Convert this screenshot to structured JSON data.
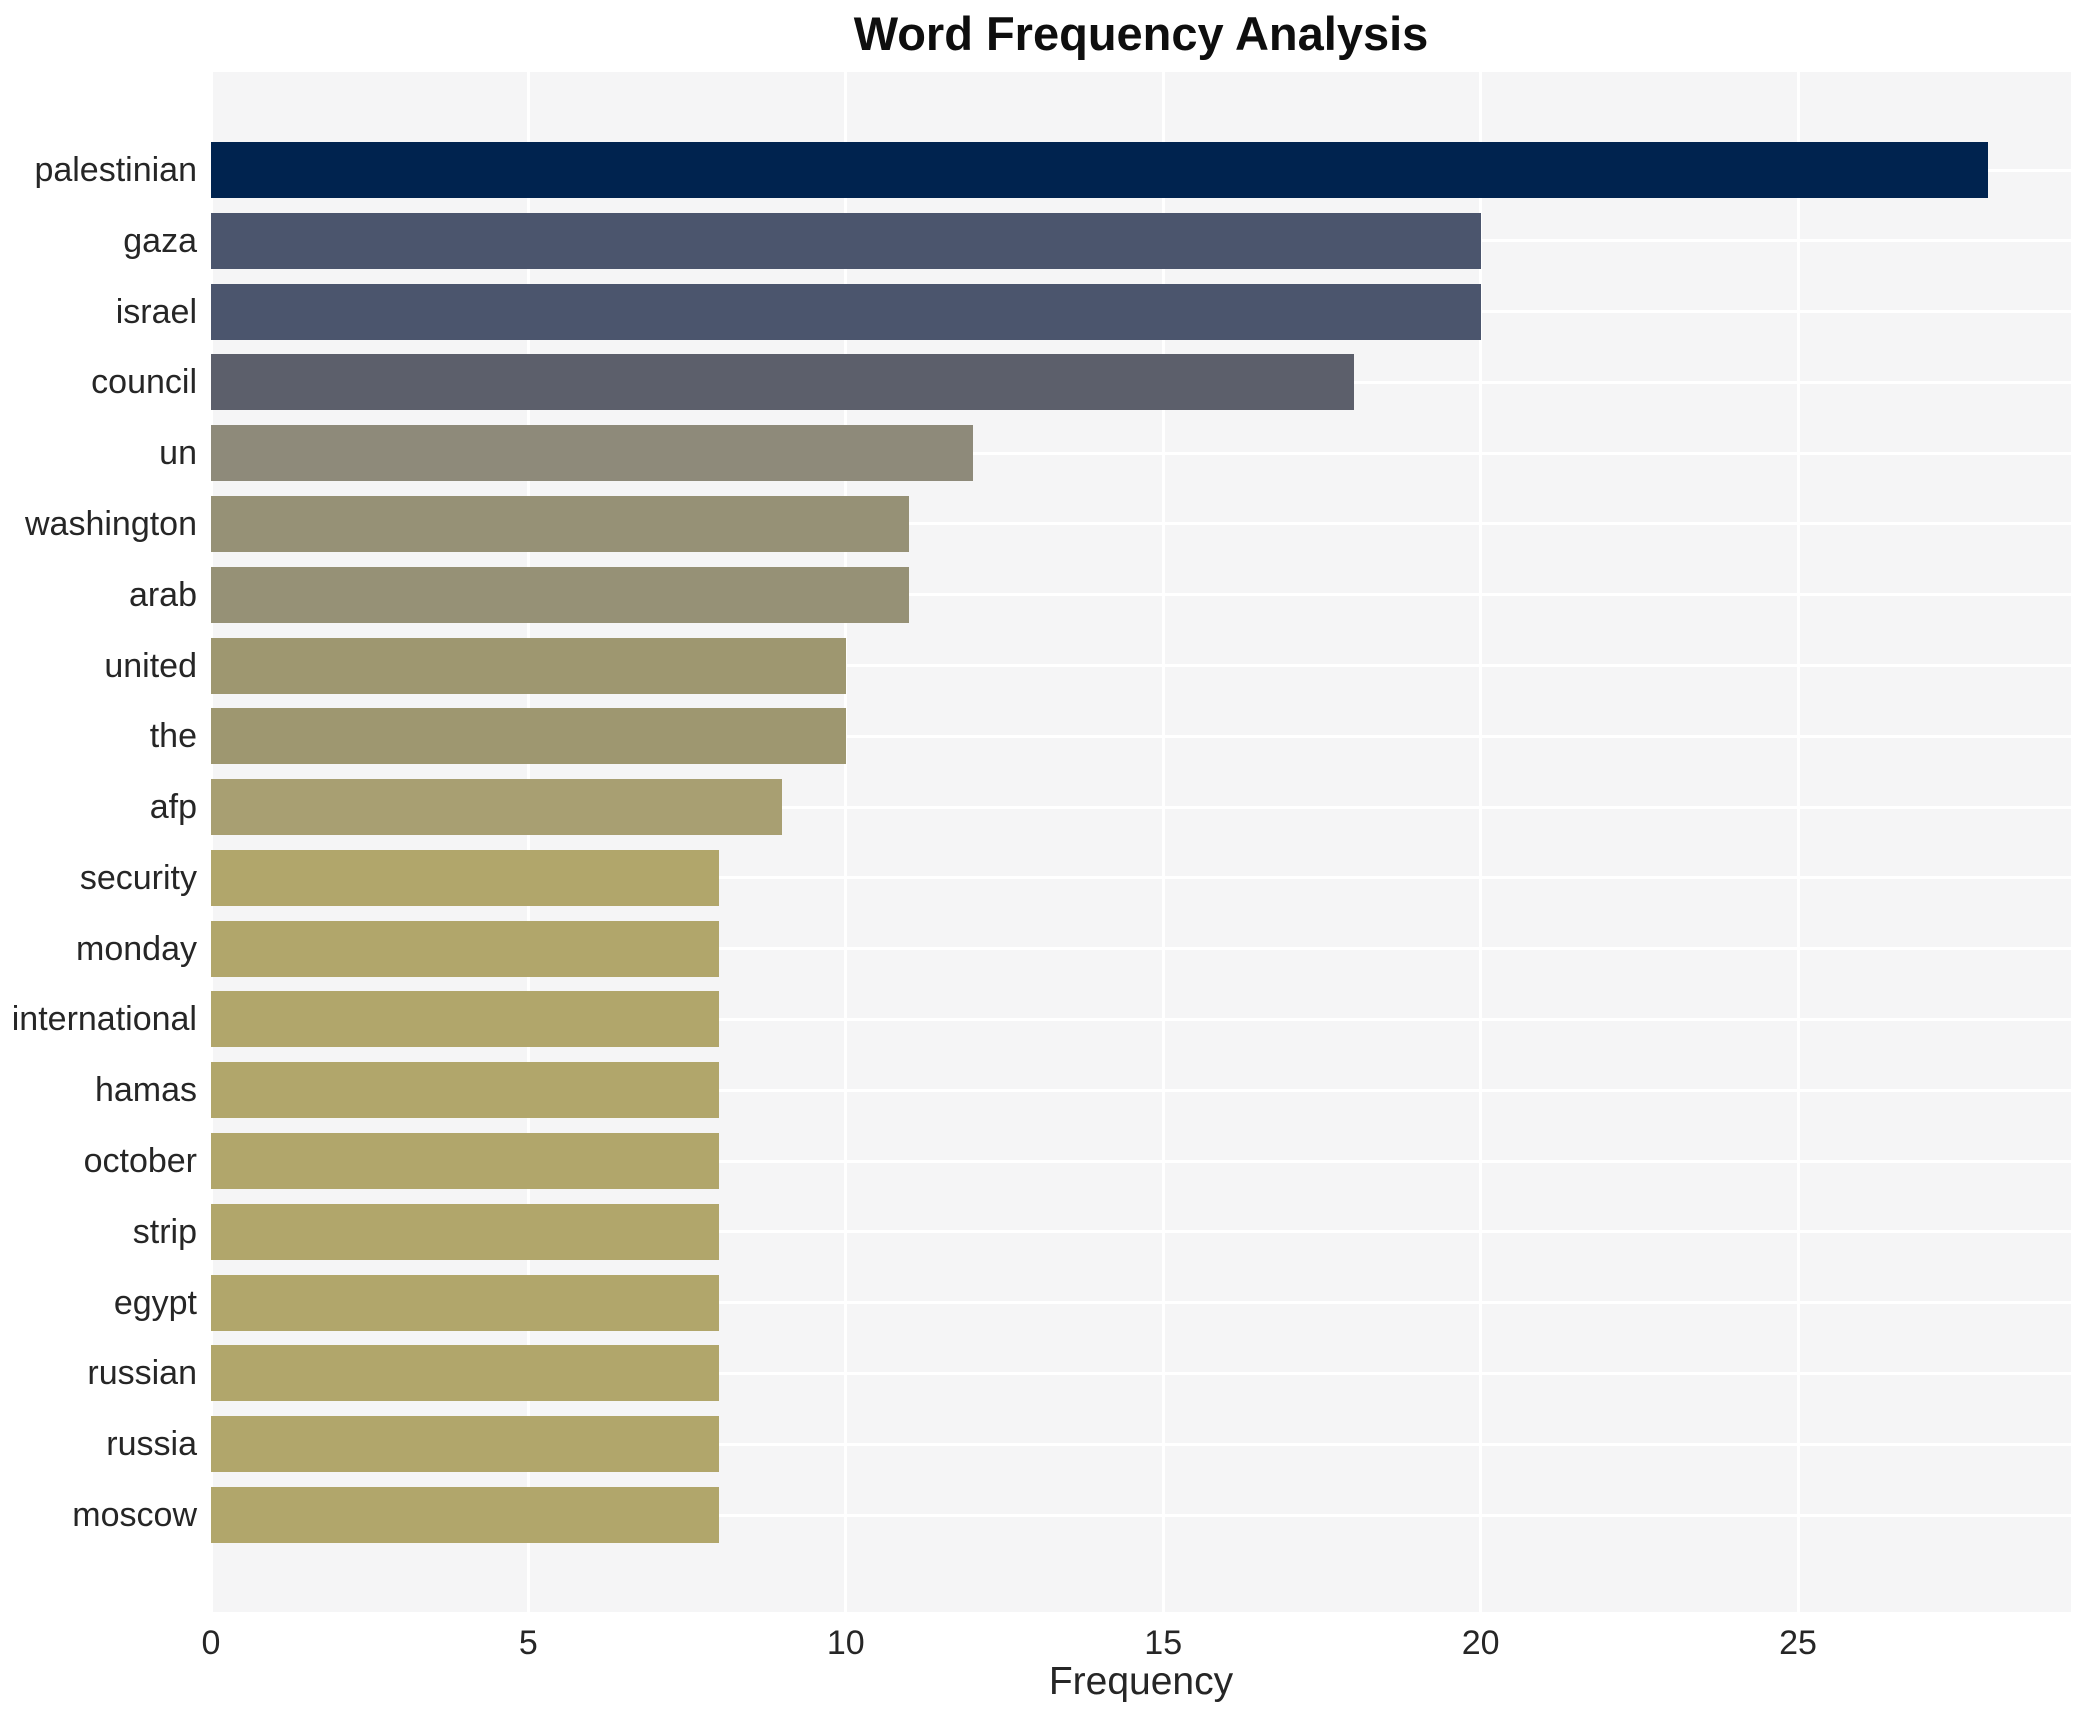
{
  "chart_data": {
    "type": "bar",
    "orientation": "horizontal",
    "title": "Word Frequency Analysis",
    "xlabel": "Frequency",
    "ylabel": "",
    "categories": [
      "palestinian",
      "gaza",
      "israel",
      "council",
      "un",
      "washington",
      "arab",
      "united",
      "the",
      "afp",
      "security",
      "monday",
      "international",
      "hamas",
      "october",
      "strip",
      "egypt",
      "russian",
      "russia",
      "moscow"
    ],
    "values": [
      28,
      20,
      20,
      18,
      12,
      11,
      11,
      10,
      10,
      9,
      8,
      8,
      8,
      8,
      8,
      8,
      8,
      8,
      8,
      8
    ],
    "bar_colors": [
      "#00234f",
      "#4b556d",
      "#4b556d",
      "#5c5f6b",
      "#8e8a7a",
      "#969176",
      "#969176",
      "#9e9770",
      "#9e9770",
      "#a89f72",
      "#b1a66b",
      "#b1a66b",
      "#b1a66b",
      "#b1a66b",
      "#b1a66b",
      "#b1a66b",
      "#b1a66b",
      "#b1a66b",
      "#b1a66b",
      "#b1a66b"
    ],
    "x_ticks": [
      0,
      5,
      10,
      15,
      20,
      25
    ],
    "xlim": [
      0,
      29.3
    ],
    "grid": true,
    "legend_visible": false,
    "plot_background": "#f5f5f6",
    "grid_color": "#ffffff",
    "text_color": "#262626",
    "title_color": "#0e0e0e"
  }
}
